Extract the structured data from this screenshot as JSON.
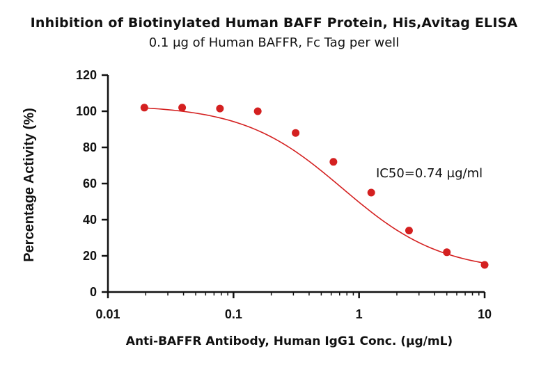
{
  "chart_data": {
    "type": "scatter",
    "title": "Inhibition of Biotinylated Human BAFF Protein, His,Avitag ELISA",
    "subtitle": "0.1 μg of Human BAFFR, Fc Tag per well",
    "xlabel": "Anti-BAFFR Antibody, Human IgG1 Conc. (μg/mL)",
    "ylabel": "Percentage Activity (%)",
    "xscale": "log",
    "xlim": [
      0.01,
      10
    ],
    "ylim": [
      0,
      120
    ],
    "xticks": [
      0.01,
      0.1,
      1,
      10
    ],
    "xtick_labels": [
      "0.01",
      "0.1",
      "1",
      "10"
    ],
    "yticks": [
      0,
      20,
      40,
      60,
      80,
      100,
      120
    ],
    "ytick_labels": [
      "0",
      "20",
      "40",
      "60",
      "80",
      "100",
      "120"
    ],
    "grid": false,
    "annotation": "IC50=0.74 μg/ml",
    "series": [
      {
        "color": "#d42020",
        "points": [
          {
            "x": 0.0195,
            "y": 102
          },
          {
            "x": 0.039,
            "y": 102
          },
          {
            "x": 0.078,
            "y": 101.5
          },
          {
            "x": 0.156,
            "y": 100
          },
          {
            "x": 0.3125,
            "y": 88
          },
          {
            "x": 0.625,
            "y": 72
          },
          {
            "x": 1.25,
            "y": 55
          },
          {
            "x": 2.5,
            "y": 34
          },
          {
            "x": 5,
            "y": 22
          },
          {
            "x": 10,
            "y": 15
          }
        ],
        "fit": {
          "model": "4PL",
          "top": 103.5,
          "bottom": 11,
          "ic50": 0.74,
          "hill": 1.1
        }
      }
    ]
  }
}
